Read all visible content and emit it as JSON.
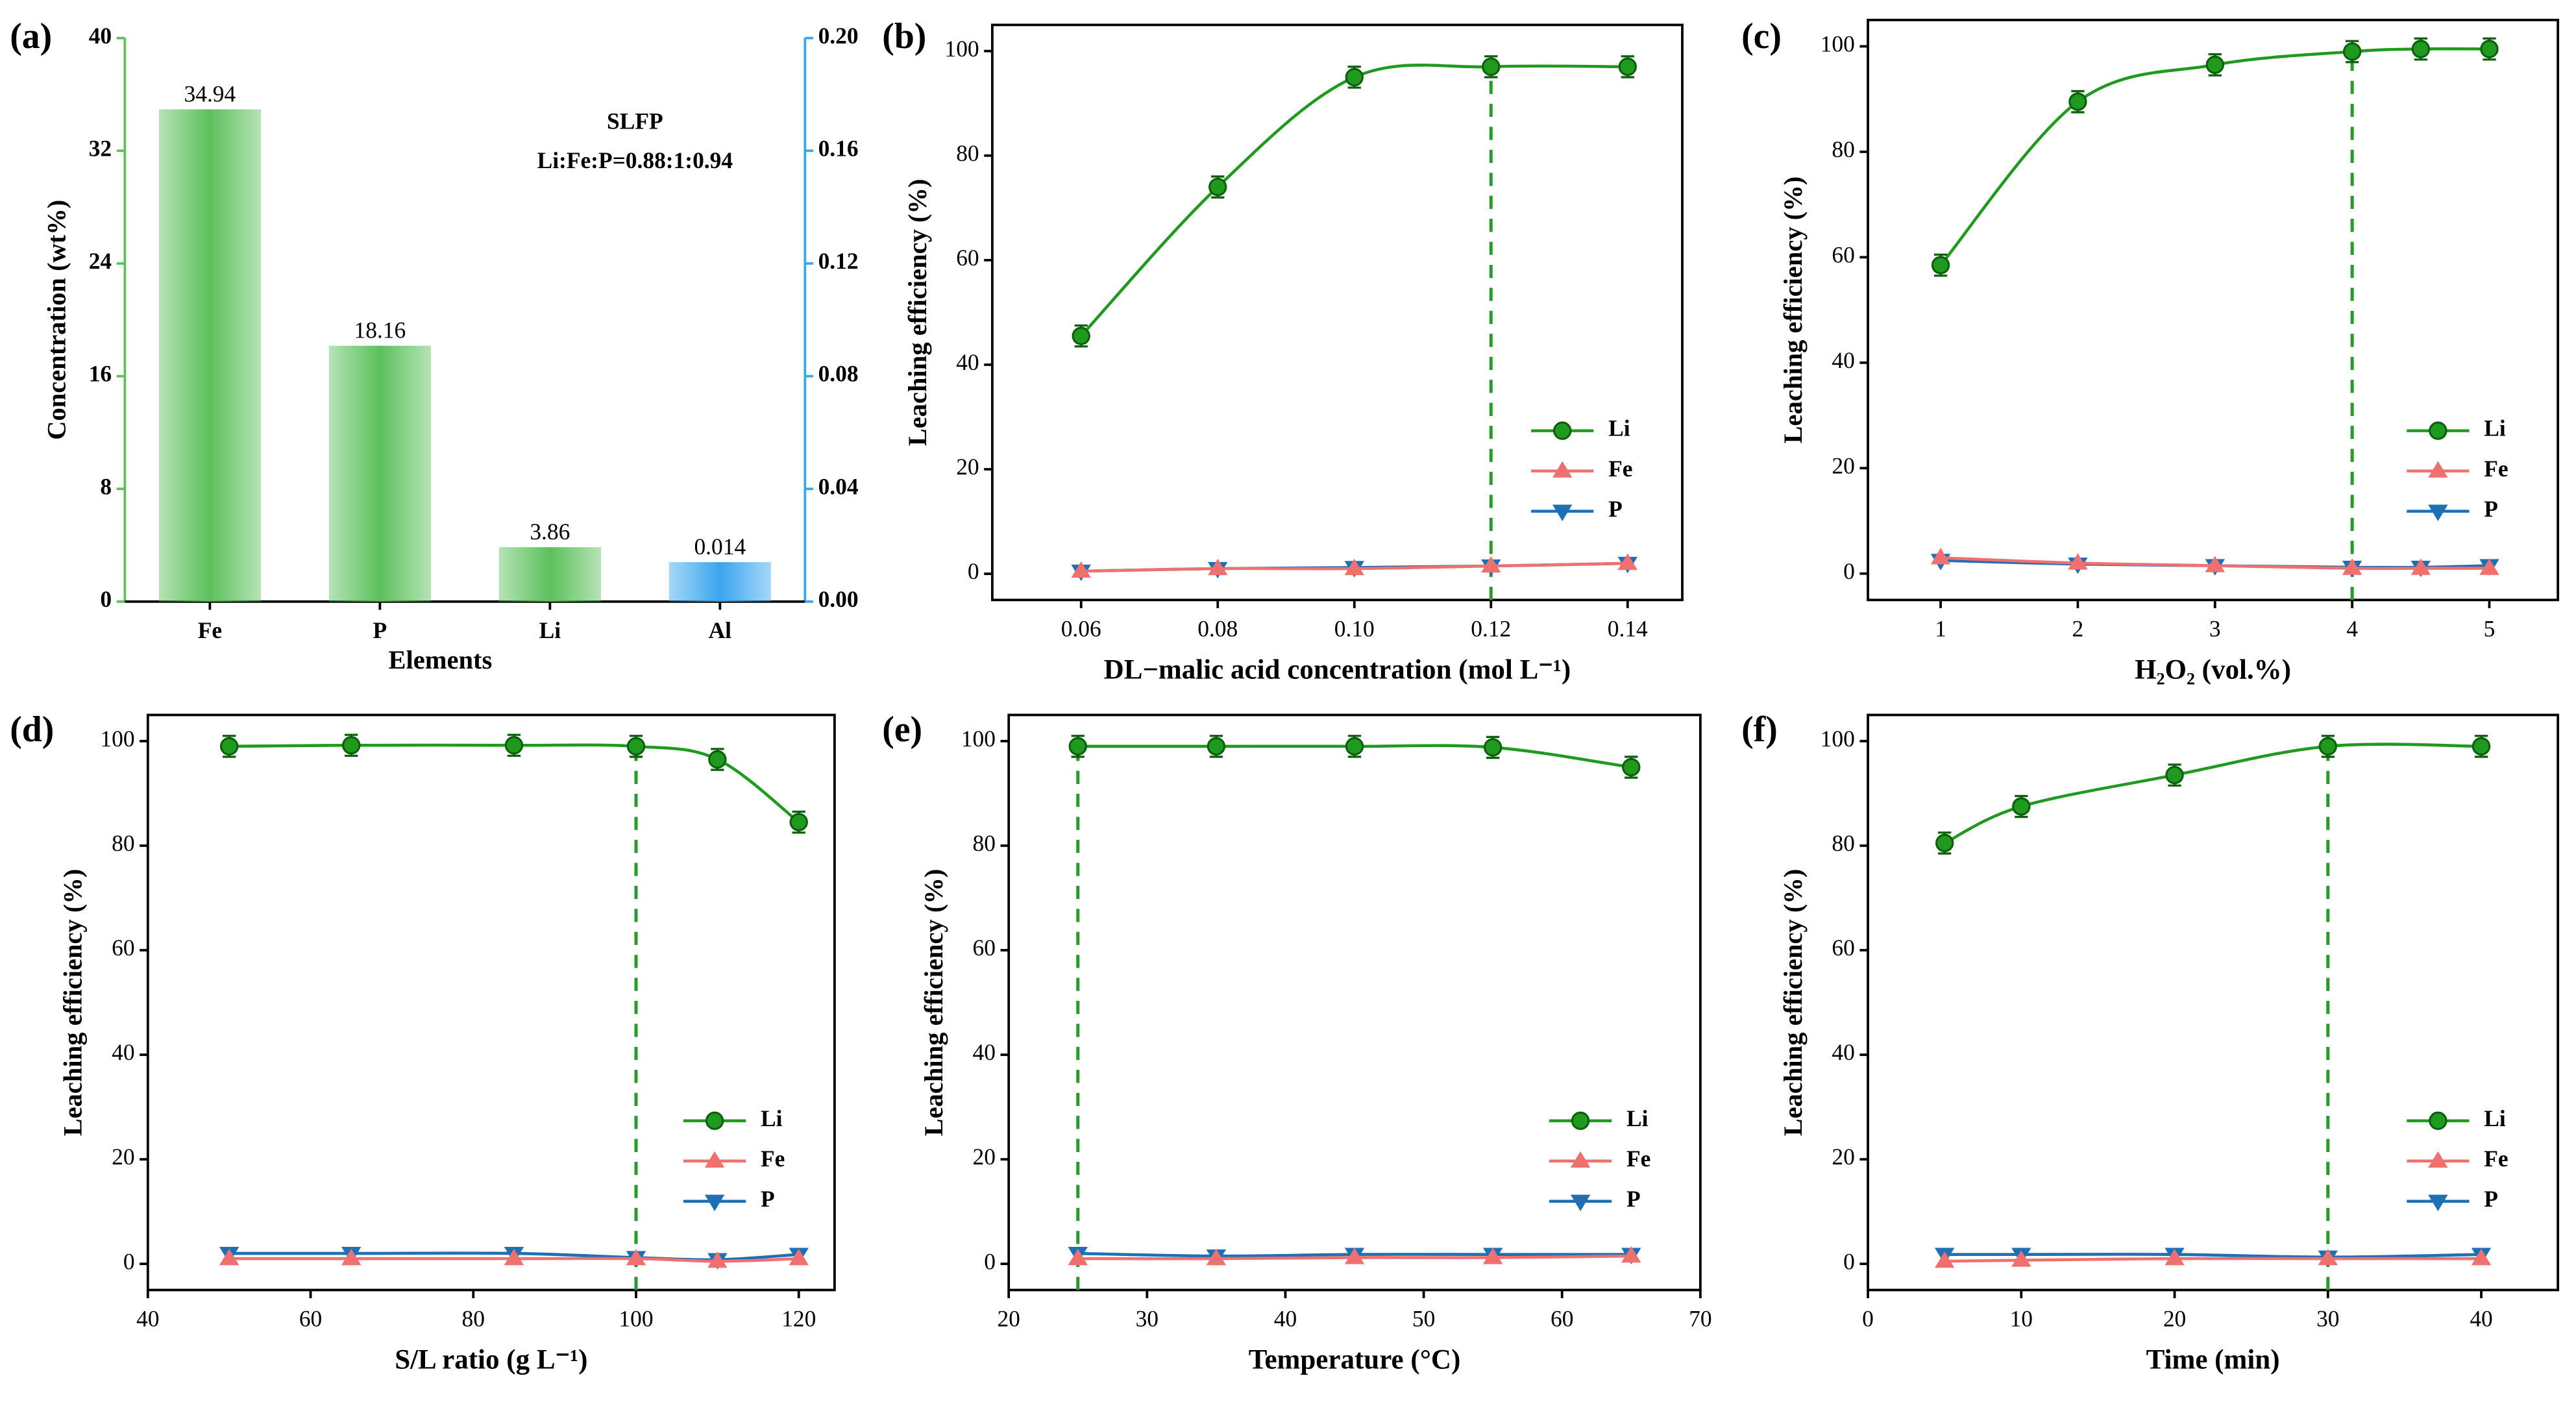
{
  "chart_data": [
    {
      "type": "bar",
      "panel": "(a)",
      "xlabel": "Elements",
      "ylabel": "Concentration (wt%)",
      "categories": [
        "Fe",
        "P",
        "Li",
        "Al"
      ],
      "series": [
        {
          "values": [
            34.94,
            18.16,
            3.86,
            null
          ],
          "color": "#5cc05c"
        },
        {
          "values": [
            null,
            null,
            null,
            0.014
          ],
          "color": "#3aa6ee",
          "axis": "y2"
        }
      ],
      "ylim": [
        0,
        40
      ],
      "yticks": [
        0,
        8,
        16,
        24,
        32,
        40
      ],
      "y2lim": [
        0,
        0.2
      ],
      "y2ticks": [
        {
          "value": 0,
          "label": "0.00"
        },
        0.04,
        0.08,
        0.12,
        0.16,
        {
          "value": 0.2,
          "label": "0.20"
        }
      ],
      "annotations": [
        "SLFP",
        "Li:Fe:P=0.88:1:0.94"
      ]
    },
    {
      "type": "line",
      "panel": "(b)",
      "xlabel": "DL−malic acid concentration (mol L⁻¹)",
      "ylabel": "Leaching efficiency (%)",
      "x": [
        0.06,
        0.08,
        0.1,
        0.12,
        0.14
      ],
      "series": [
        {
          "name": "Li",
          "color": "#1f9a1f",
          "values": [
            45.5,
            74,
            95,
            97,
            97
          ],
          "errors": [
            2,
            2,
            2,
            2,
            2
          ]
        },
        {
          "name": "Fe",
          "color": "#f07070",
          "values": [
            0.5,
            1,
            1,
            1.5,
            2
          ]
        },
        {
          "name": "P",
          "color": "#1f6fb5",
          "values": [
            0.5,
            1,
            1.2,
            1.5,
            2
          ]
        }
      ],
      "xlim": [
        0.047,
        0.148
      ],
      "xticks": [
        0.06,
        0.08,
        {
          "value": 0.1,
          "label": "0.10"
        },
        0.12,
        0.14
      ],
      "ylim": [
        -5,
        105
      ],
      "yticks": [
        0,
        20,
        40,
        60,
        80,
        100
      ],
      "highlight_x": 0.12,
      "legend": "lower right"
    },
    {
      "type": "line",
      "panel": "(c)",
      "xlabel": "H₂O₂ (vol.%)",
      "ylabel": "Leaching efficiency (%)",
      "x": [
        1,
        2,
        3,
        4,
        4.5,
        5
      ],
      "series": [
        {
          "name": "Li",
          "color": "#1f9a1f",
          "values": [
            58.5,
            89.5,
            96.5,
            99,
            99.5,
            99.5
          ],
          "errors": [
            2,
            2,
            2,
            2,
            2,
            2
          ]
        },
        {
          "name": "Fe",
          "color": "#f07070",
          "values": [
            3,
            2,
            1.5,
            1,
            1,
            1
          ]
        },
        {
          "name": "P",
          "color": "#1f6fb5",
          "values": [
            2.5,
            1.8,
            1.5,
            1.2,
            1.2,
            1.5
          ]
        }
      ],
      "xlim": [
        0.47,
        5.5
      ],
      "xticks": [
        1,
        2,
        3,
        4,
        5
      ],
      "ylim": [
        -5,
        105
      ],
      "yticks": [
        0,
        20,
        40,
        60,
        80,
        100
      ],
      "highlight_x": 4,
      "legend": "lower right"
    },
    {
      "type": "line",
      "panel": "(d)",
      "xlabel": "S/L ratio (g L⁻¹)",
      "ylabel": "Leaching efficiency (%)",
      "x": [
        50,
        65,
        85,
        100,
        110,
        120
      ],
      "series": [
        {
          "name": "Li",
          "color": "#1f9a1f",
          "values": [
            99,
            99.2,
            99.2,
            99,
            96.5,
            84.5
          ],
          "errors": [
            2,
            2,
            2,
            2,
            2,
            2
          ]
        },
        {
          "name": "Fe",
          "color": "#f07070",
          "values": [
            1,
            1,
            1,
            1,
            0.5,
            1
          ]
        },
        {
          "name": "P",
          "color": "#1f6fb5",
          "values": [
            2,
            2,
            2,
            1.2,
            0.8,
            1.8
          ]
        }
      ],
      "xlim": [
        40,
        124.4
      ],
      "xticks": [
        40,
        60,
        80,
        100,
        120
      ],
      "ylim": [
        -5,
        105
      ],
      "yticks": [
        0,
        20,
        40,
        60,
        80,
        100
      ],
      "highlight_x": 100,
      "legend": "lower right"
    },
    {
      "type": "line",
      "panel": "(e)",
      "xlabel": "Temperature (°C)",
      "ylabel": "Leaching efficiency (%)",
      "x": [
        25,
        35,
        45,
        55,
        65
      ],
      "series": [
        {
          "name": "Li",
          "color": "#1f9a1f",
          "values": [
            99,
            99,
            99,
            98.8,
            95
          ],
          "errors": [
            2,
            2,
            2,
            2,
            2
          ]
        },
        {
          "name": "Fe",
          "color": "#f07070",
          "values": [
            1,
            1,
            1.2,
            1.2,
            1.5
          ]
        },
        {
          "name": "P",
          "color": "#1f6fb5",
          "values": [
            2,
            1.5,
            1.8,
            1.8,
            1.8
          ]
        }
      ],
      "xlim": [
        20,
        70
      ],
      "xticks": [
        20,
        30,
        40,
        50,
        60,
        70
      ],
      "ylim": [
        -5,
        105
      ],
      "yticks": [
        0,
        20,
        40,
        60,
        80,
        100
      ],
      "highlight_x": 25,
      "legend": "lower right"
    },
    {
      "type": "line",
      "panel": "(f)",
      "xlabel": "Time (min)",
      "ylabel": "Leaching efficiency (%)",
      "x": [
        5,
        10,
        20,
        30,
        40
      ],
      "series": [
        {
          "name": "Li",
          "color": "#1f9a1f",
          "values": [
            80.5,
            87.5,
            93.5,
            99,
            99
          ],
          "errors": [
            2,
            2,
            2,
            2,
            2
          ]
        },
        {
          "name": "Fe",
          "color": "#f07070",
          "values": [
            0.5,
            0.7,
            1,
            1,
            1
          ]
        },
        {
          "name": "P",
          "color": "#1f6fb5",
          "values": [
            1.8,
            1.8,
            1.8,
            1.3,
            1.8
          ]
        }
      ],
      "xlim": [
        0,
        45
      ],
      "xticks": [
        0,
        10,
        20,
        30,
        40
      ],
      "ylim": [
        -5,
        105
      ],
      "yticks": [
        0,
        20,
        40,
        60,
        80,
        100
      ],
      "highlight_x": 30,
      "legend": "lower right"
    }
  ]
}
